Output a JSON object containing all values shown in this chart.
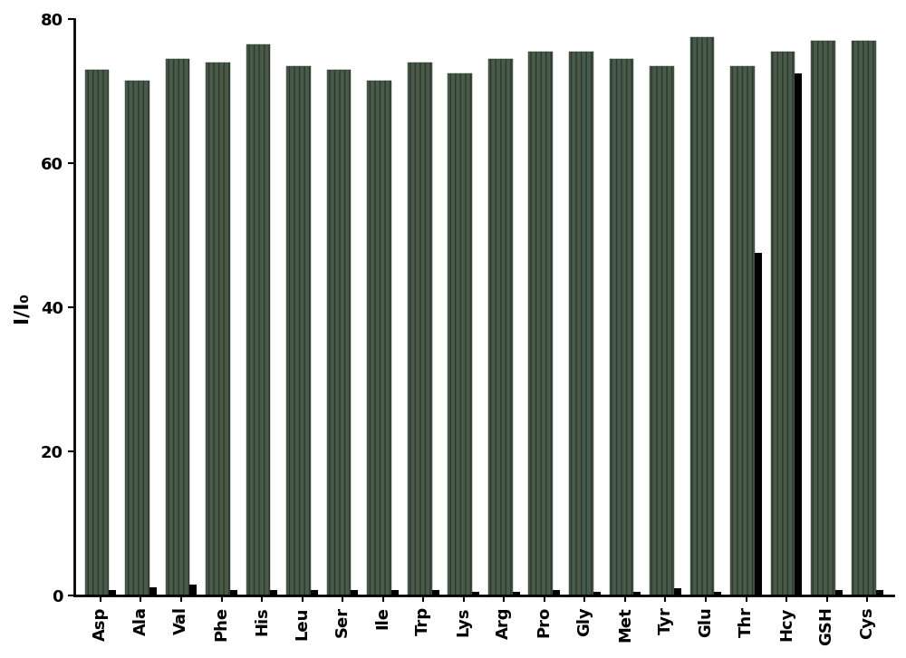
{
  "categories": [
    "Asp",
    "Ala",
    "Val",
    "Phe",
    "His",
    "Leu",
    "Ser",
    "Ile",
    "Trp",
    "Lys",
    "Arg",
    "Pro",
    "Gly",
    "Met",
    "Tyr",
    "Glu",
    "Thr",
    "Hcy",
    "GSH",
    "Cys"
  ],
  "values_gray": [
    73.0,
    71.5,
    74.5,
    74.0,
    76.5,
    73.5,
    73.0,
    71.5,
    74.0,
    72.5,
    74.5,
    75.5,
    75.5,
    74.5,
    73.5,
    77.5,
    73.5,
    75.5,
    77.0,
    77.0
  ],
  "values_black": [
    0.8,
    1.2,
    1.5,
    0.8,
    0.8,
    0.8,
    0.8,
    0.8,
    0.8,
    0.5,
    0.5,
    0.8,
    0.5,
    0.5,
    1.0,
    0.5,
    47.5,
    72.5,
    0.8,
    0.8
  ],
  "gray_color": "#4a5a4a",
  "black_color": "#000000",
  "ylabel": "I/I₀",
  "ylim": [
    0,
    80
  ],
  "yticks": [
    0,
    20,
    40,
    60,
    80
  ],
  "gray_bar_width": 0.6,
  "black_bar_width": 0.18,
  "figsize": [
    10.0,
    7.26
  ],
  "dpi": 100,
  "background_color": "#ffffff"
}
